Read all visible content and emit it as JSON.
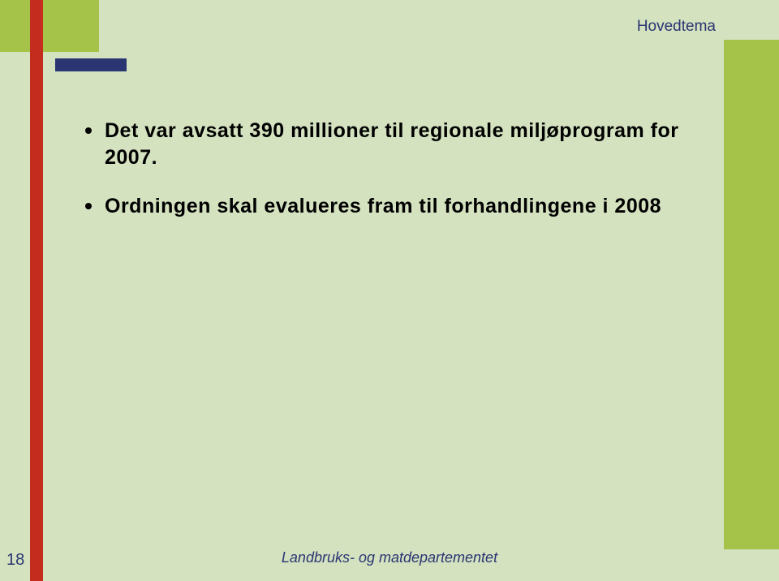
{
  "header": {
    "label": "Hovedtema",
    "label_color": "#2a3572"
  },
  "bullets": [
    "Det var avsatt 390 millioner til regionale miljøprogram for 2007.",
    "Ordningen skal evalueres fram til forhandlingene i 2008"
  ],
  "footer": {
    "text": "Landbruks- og matdepartementet",
    "color": "#2a3572"
  },
  "page_number": "18",
  "palette": {
    "background": "#d4e2c0",
    "red_stripe": "#c42d1d",
    "green_block": "#a5c249",
    "navy": "#2a3572"
  }
}
